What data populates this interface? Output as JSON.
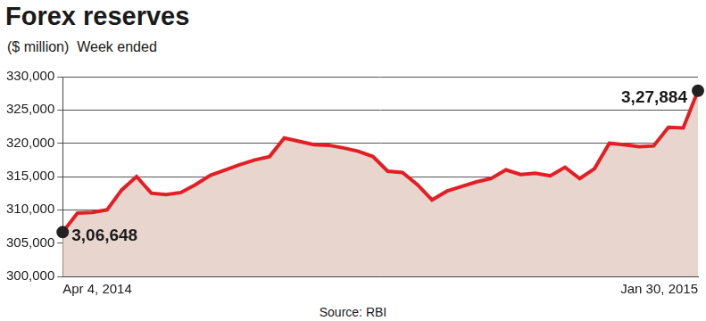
{
  "chart_data": {
    "type": "line",
    "title": "Forex reserves",
    "subtitle": "($ million)  Week ended",
    "source": "Source: RBI",
    "categories": [
      "Apr 4, 2014",
      null,
      null,
      null,
      null,
      null,
      null,
      null,
      null,
      null,
      null,
      null,
      null,
      null,
      null,
      null,
      null,
      null,
      null,
      null,
      null,
      null,
      null,
      null,
      null,
      null,
      null,
      null,
      null,
      null,
      null,
      null,
      null,
      null,
      null,
      null,
      null,
      null,
      null,
      null,
      null,
      null,
      null,
      "Jan 30, 2015"
    ],
    "values": [
      306648,
      309500,
      309600,
      310000,
      313000,
      315000,
      312500,
      312300,
      312600,
      313800,
      315200,
      316000,
      316800,
      317500,
      318000,
      320800,
      320300,
      319800,
      319700,
      319300,
      318800,
      318000,
      315800,
      315600,
      313800,
      311500,
      312800,
      313500,
      314200,
      314700,
      316000,
      315300,
      315500,
      315100,
      316400,
      314700,
      316200,
      320000,
      319800,
      319500,
      319600,
      322400,
      322300,
      327884
    ],
    "value_labels": [
      "3,06,648",
      null,
      null,
      null,
      null,
      null,
      null,
      null,
      null,
      null,
      null,
      null,
      null,
      null,
      null,
      null,
      null,
      null,
      null,
      null,
      null,
      null,
      null,
      null,
      null,
      null,
      null,
      null,
      null,
      null,
      null,
      null,
      null,
      null,
      null,
      null,
      null,
      null,
      null,
      null,
      null,
      null,
      null,
      "3,27,884"
    ],
    "color": "#e31e24",
    "ylim": [
      300000,
      330000
    ],
    "yticks": [
      {
        "value": 300000,
        "label": "300,000"
      },
      {
        "value": 305000,
        "label": "305,000"
      },
      {
        "value": 310000,
        "label": "310,000"
      },
      {
        "value": 315000,
        "label": "315,000"
      },
      {
        "value": 320000,
        "label": "320,000"
      },
      {
        "value": 325000,
        "label": "325,000"
      },
      {
        "value": 330000,
        "label": "330,000"
      }
    ],
    "grid": true
  }
}
